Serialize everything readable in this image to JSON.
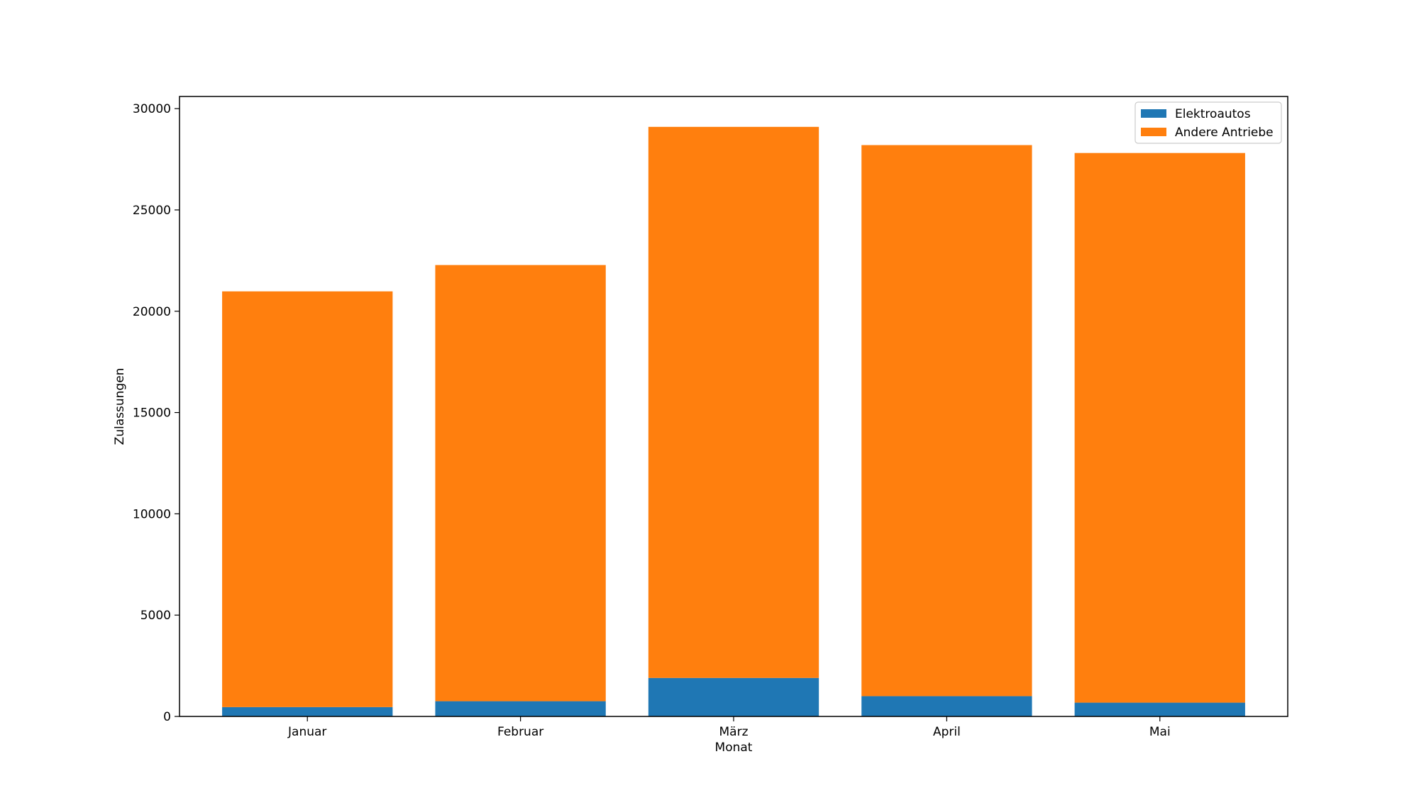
{
  "chart_data": {
    "type": "bar",
    "stacked": true,
    "title": "",
    "xlabel": "Monat",
    "ylabel": "Zulassungen",
    "categories": [
      "Januar",
      "Februar",
      "März",
      "April",
      "Mai"
    ],
    "series": [
      {
        "name": "Elektroautos",
        "color": "#1f77b4",
        "values": [
          460,
          750,
          1900,
          1000,
          680
        ]
      },
      {
        "name": "Andere Antriebe",
        "color": "#ff7f0e",
        "values": [
          20520,
          21530,
          27200,
          27200,
          27130
        ]
      }
    ],
    "totals": [
      20980,
      22280,
      29100,
      28200,
      27810
    ],
    "ylim": [
      0,
      30600
    ],
    "yticks": [
      0,
      5000,
      10000,
      15000,
      20000,
      25000,
      30000
    ],
    "grid": false,
    "legend_position": "top-right"
  }
}
